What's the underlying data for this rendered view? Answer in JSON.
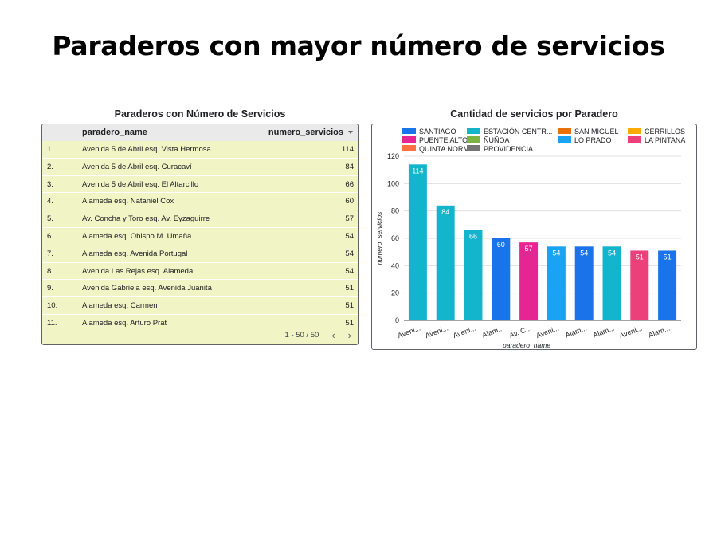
{
  "page": {
    "title": "Paraderos con mayor número de servicios"
  },
  "table": {
    "title": "Paraderos con Número de Servicios",
    "columns": {
      "name": "paradero_name",
      "value": "numero_servicios"
    },
    "rows": [
      {
        "idx": "1.",
        "name": "Avenida 5 de Abril esq. Vista Hermosa",
        "value": "114"
      },
      {
        "idx": "2.",
        "name": "Avenida 5 de Abril esq. Curacaví",
        "value": "84"
      },
      {
        "idx": "3.",
        "name": "Avenida 5 de Abril esq. El Altarcillo",
        "value": "66"
      },
      {
        "idx": "4.",
        "name": "Alameda esq. Nataniel Cox",
        "value": "60"
      },
      {
        "idx": "5.",
        "name": "Av. Concha y Toro esq. Av. Eyzaguirre",
        "value": "57"
      },
      {
        "idx": "6.",
        "name": "Alameda esq. Obispo M. Umaña",
        "value": "54"
      },
      {
        "idx": "7.",
        "name": "Alameda esq. Avenida Portugal",
        "value": "54"
      },
      {
        "idx": "8.",
        "name": "Avenida Las Rejas esq. Alameda",
        "value": "54"
      },
      {
        "idx": "9.",
        "name": "Avenida Gabriela esq. Avenida Juanita",
        "value": "51"
      },
      {
        "idx": "10.",
        "name": "Alameda esq. Carmen",
        "value": "51"
      },
      {
        "idx": "11.",
        "name": "Alameda esq. Arturo Prat",
        "value": "51"
      }
    ],
    "pagination": {
      "label": "1 - 50 / 50",
      "prev_icon": "chevron-left-icon",
      "next_icon": "chevron-right-icon"
    }
  },
  "colors": {
    "table_background": "#f1f4c5",
    "header_background": "#eaeaea"
  },
  "chart_data": {
    "type": "bar",
    "title": "Cantidad de servicios por Paradero",
    "xlabel": "paradero_name",
    "ylabel": "numero_servicios",
    "ylim": [
      0,
      120
    ],
    "yticks": [
      0,
      20,
      40,
      60,
      80,
      100,
      120
    ],
    "grid": true,
    "legend_position": "top",
    "legend": [
      {
        "name": "SANTIAGO",
        "color": "#1a73e8"
      },
      {
        "name": "ESTACIÓN CENTR...",
        "color": "#12b5cb"
      },
      {
        "name": "SAN MIGUEL",
        "color": "#e8710a"
      },
      {
        "name": "CERRILLOS",
        "color": "#f9ab00"
      },
      {
        "name": "PUENTE ALTO",
        "color": "#e52592"
      },
      {
        "name": "ÑUÑOA",
        "color": "#7cb342"
      },
      {
        "name": "LO PRADO",
        "color": "#1aa3f5"
      },
      {
        "name": "LA PINTANA",
        "color": "#ec407a"
      },
      {
        "name": "QUINTA NORMAL",
        "color": "#ff7043"
      },
      {
        "name": "PROVIDENCIA",
        "color": "#757575"
      }
    ],
    "categories": [
      "Aveni...",
      "Aveni...",
      "Aveni...",
      "Alam...",
      "Av. C...",
      "Aveni...",
      "Alam...",
      "Alam...",
      "Aveni...",
      "Alam..."
    ],
    "values": [
      114,
      84,
      66,
      60,
      57,
      54,
      54,
      54,
      51,
      51
    ],
    "bar_colors": [
      "#12b5cb",
      "#12b5cb",
      "#12b5cb",
      "#1a73e8",
      "#e52592",
      "#1aa3f5",
      "#1a73e8",
      "#12b5cb",
      "#ec407a",
      "#1a73e8"
    ]
  }
}
